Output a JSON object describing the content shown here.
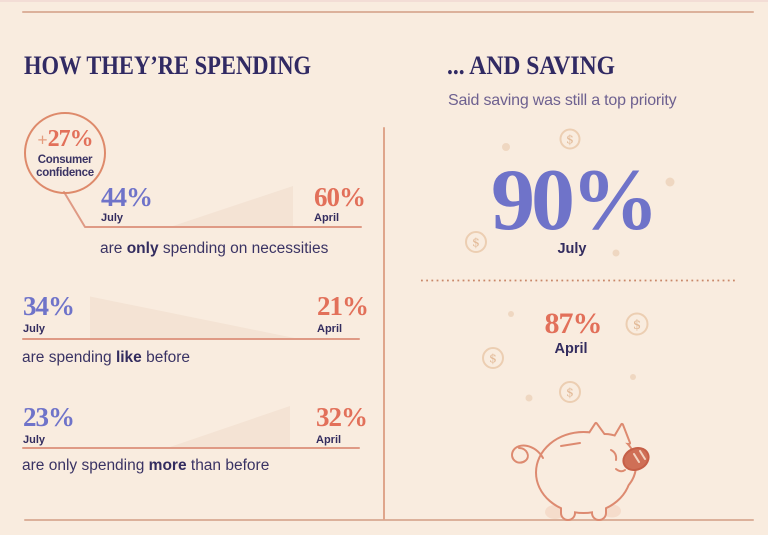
{
  "icons": {
    "dollar_sign": "$"
  },
  "palette": {
    "background": "#f9ecdf",
    "navy": "#312a63",
    "periwinkle": "#6f73c9",
    "salmon": "#e2705a",
    "line_salmon": "#df9a85",
    "frame_line": "#dcb19b",
    "wedge_fill": "#f4e3d4"
  },
  "left_panel": {
    "title": "HOW THEY’RE SPENDING",
    "badge": {
      "value": "+27%",
      "label": "Consumer confidence",
      "label_line1": "Consumer",
      "label_line2": "confidence"
    },
    "rows": [
      {
        "july_value": "44%",
        "july_label": "July",
        "april_value": "60%",
        "april_label": "April",
        "caption_pre": "are ",
        "caption_bold": "only",
        "caption_post": " spending on necessities"
      },
      {
        "july_value": "34%",
        "july_label": "July",
        "april_value": "21%",
        "april_label": "April",
        "caption_pre": "are spending ",
        "caption_bold": "like",
        "caption_post": " before"
      },
      {
        "july_value": "23%",
        "july_label": "July",
        "april_value": "32%",
        "april_label": "April",
        "caption_pre": "are only spending ",
        "caption_bold": "more",
        "caption_post": " than before"
      }
    ]
  },
  "right_panel": {
    "title": "... AND SAVING",
    "subtitle": "Said saving was still a top priority",
    "july": {
      "value": "90%",
      "label": "July"
    },
    "april": {
      "value": "87%",
      "label": "April"
    }
  },
  "chart_data": [
    {
      "type": "area",
      "title": "HOW THEY'RE SPENDING",
      "categories": [
        "July",
        "April"
      ],
      "series": [
        {
          "name": "are only spending on necessities",
          "values": [
            44,
            60
          ]
        },
        {
          "name": "are spending like before",
          "values": [
            34,
            21
          ]
        },
        {
          "name": "are only spending more than before",
          "values": [
            23,
            32
          ]
        }
      ],
      "annotations": [
        "+27% Consumer confidence"
      ],
      "unit": "%"
    },
    {
      "type": "table",
      "title": "... AND SAVING",
      "subtitle": "Said saving was still a top priority",
      "categories": [
        "July",
        "April"
      ],
      "values": [
        90,
        87
      ],
      "unit": "%"
    }
  ]
}
